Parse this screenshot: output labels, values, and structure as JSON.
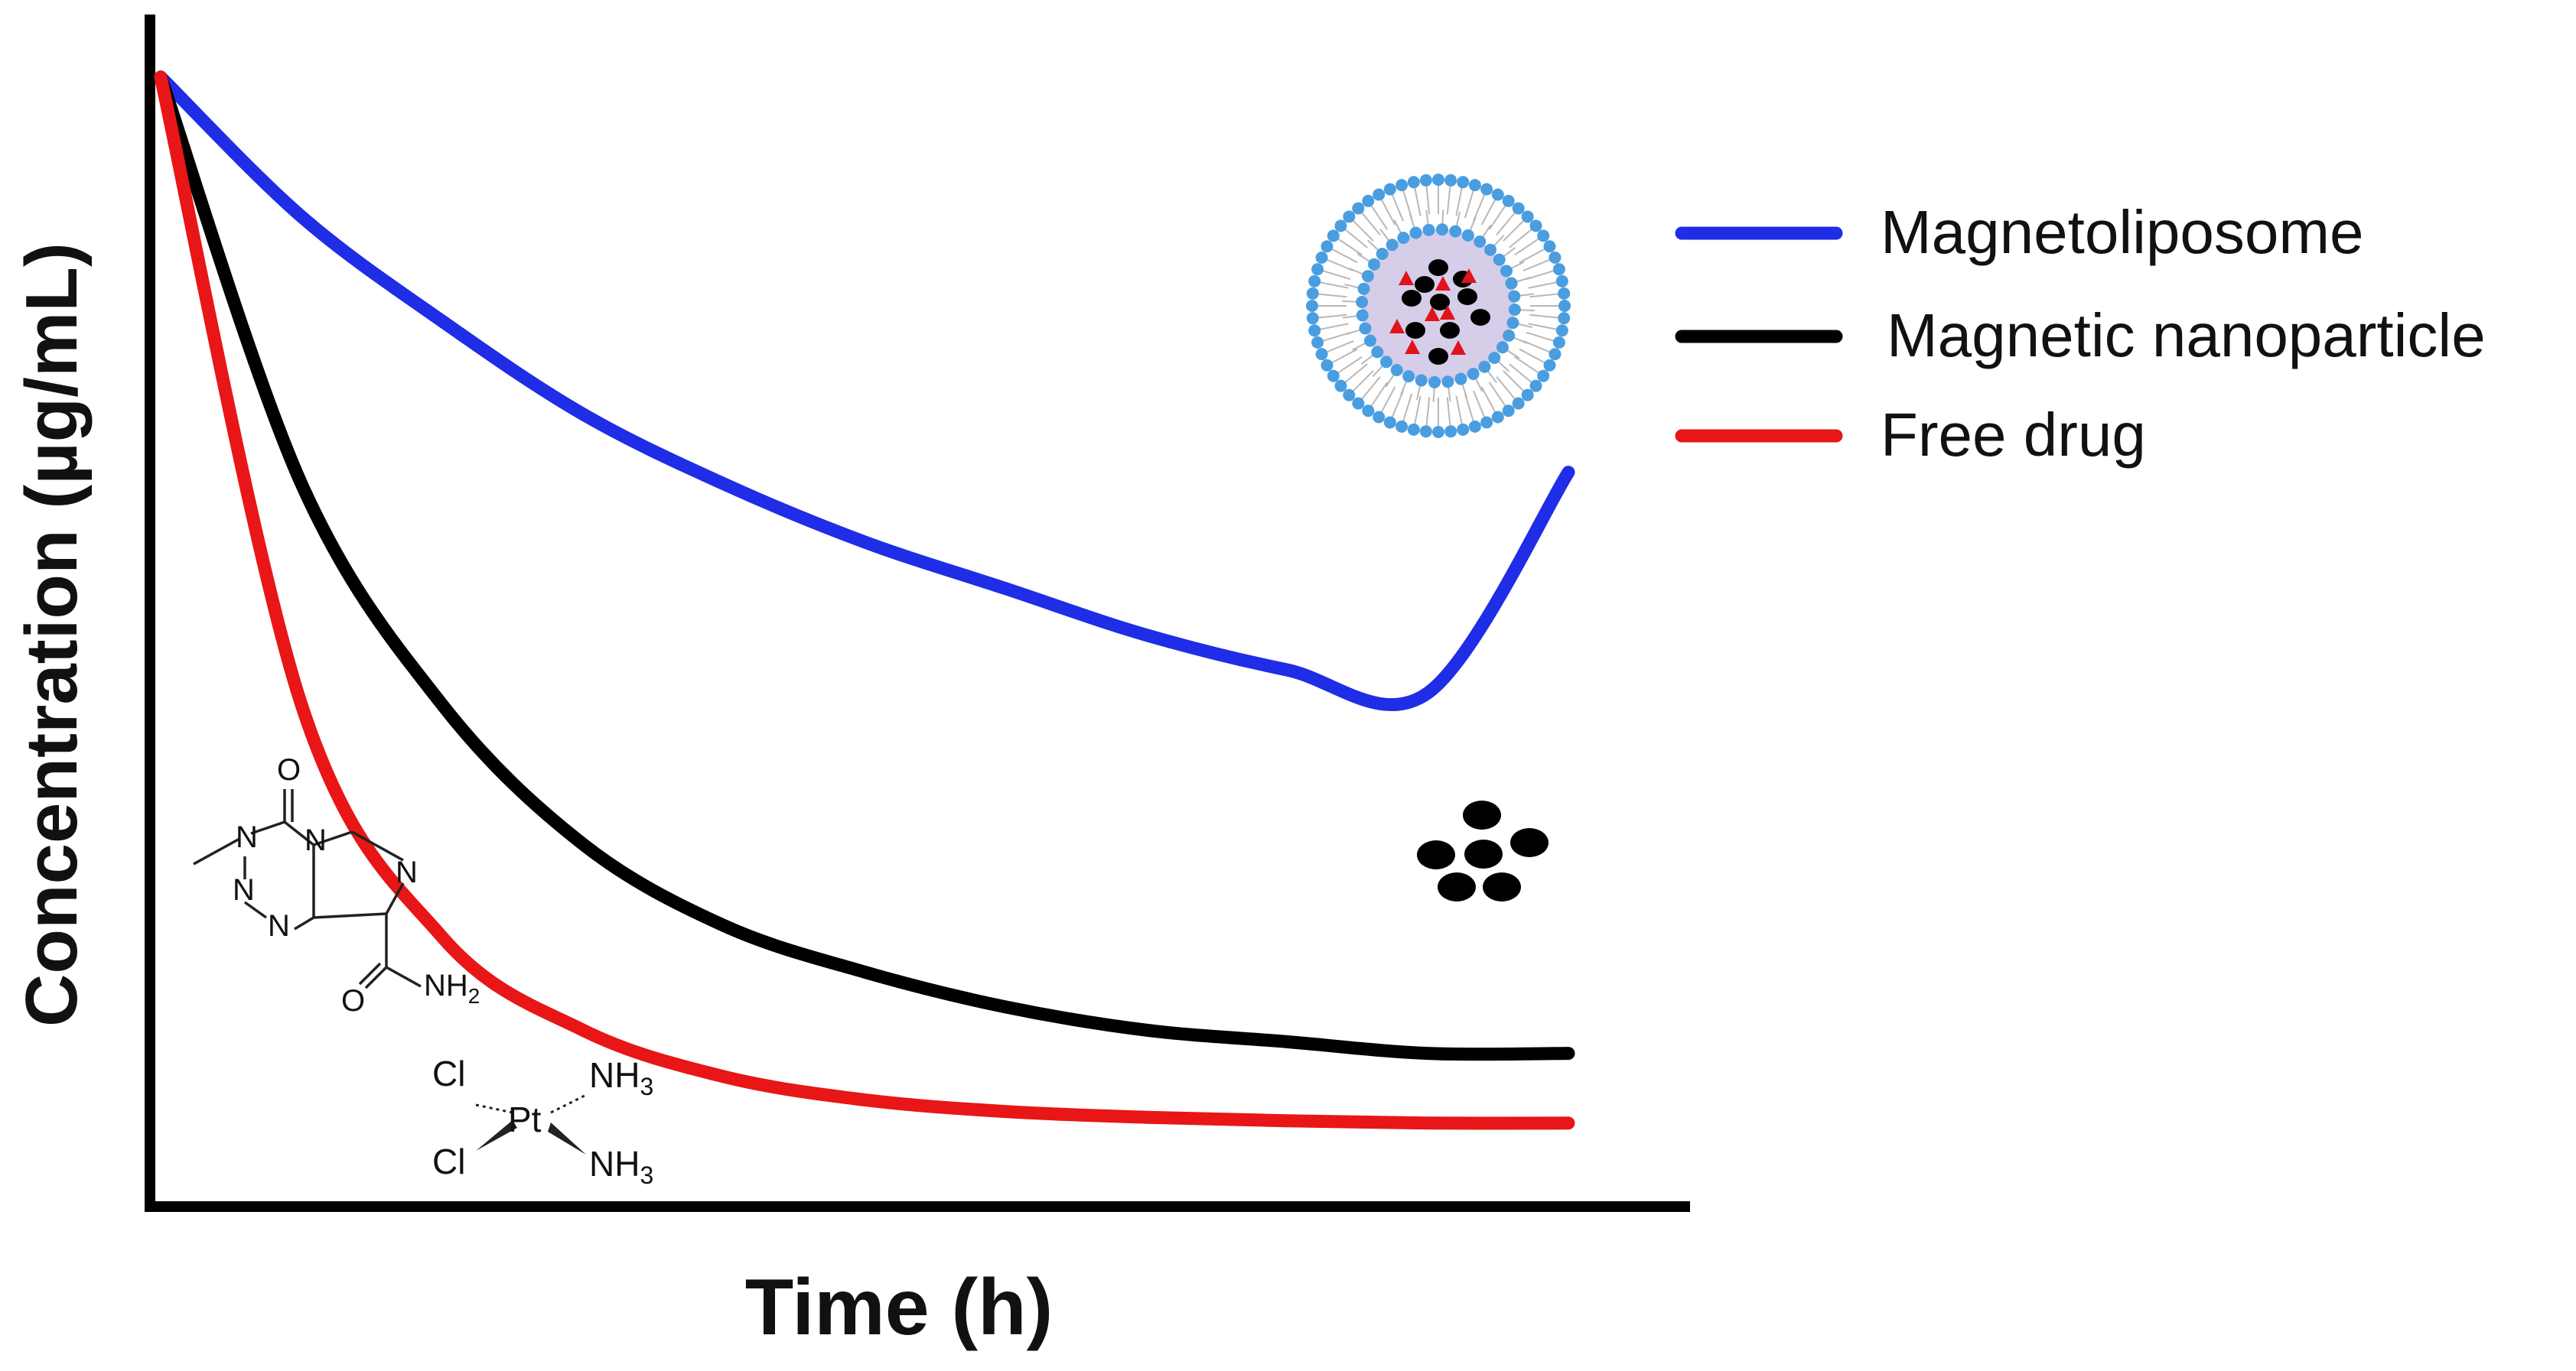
{
  "chart_data": {
    "type": "line",
    "title": "",
    "xlabel": "Time (h)",
    "ylabel": "Concentration (µg/mL)",
    "x_ticks_shown": false,
    "y_ticks_shown": false,
    "grid": false,
    "legend_position": "top-right",
    "xlim": [
      0,
      10
    ],
    "ylim": [
      0,
      1
    ],
    "series": [
      {
        "name": "Magnetoliposome",
        "color": "#1f2de6",
        "x": [
          0,
          1,
          2,
          3,
          4,
          5,
          6,
          7,
          8,
          9,
          10
        ],
        "y": [
          0.96,
          0.84,
          0.75,
          0.67,
          0.61,
          0.56,
          0.52,
          0.48,
          0.45,
          0.43,
          0.62
        ]
      },
      {
        "name": "Magnetic nanoparticle",
        "color": "#000000",
        "x": [
          0,
          1,
          2,
          3,
          4,
          5,
          6,
          7,
          8,
          9,
          10
        ],
        "y": [
          0.96,
          0.61,
          0.42,
          0.3,
          0.23,
          0.19,
          0.16,
          0.14,
          0.13,
          0.12,
          0.12
        ]
      },
      {
        "name": "Free drug",
        "color": "#e81616",
        "x": [
          0,
          1,
          2,
          3,
          4,
          5,
          6,
          7,
          8,
          9,
          10
        ],
        "y": [
          0.96,
          0.42,
          0.22,
          0.14,
          0.1,
          0.08,
          0.07,
          0.065,
          0.062,
          0.06,
          0.06
        ]
      }
    ]
  },
  "annotations": {
    "liposome_icon": "magnetoliposome-icon",
    "nanoparticle_icon": "nanoparticle-cluster-icon",
    "temozolomide": {
      "o_top": "O",
      "n1": "N",
      "n2": "N",
      "n3": "N",
      "n4": "N",
      "n5": "N",
      "o_bottom": "O",
      "nh2": "NH",
      "nh2_sub": "2"
    },
    "cisplatin": {
      "cl1": "Cl",
      "cl2": "Cl",
      "pt": "Pt",
      "nh3a": "NH",
      "nh3b": "NH",
      "sub": "3"
    }
  }
}
